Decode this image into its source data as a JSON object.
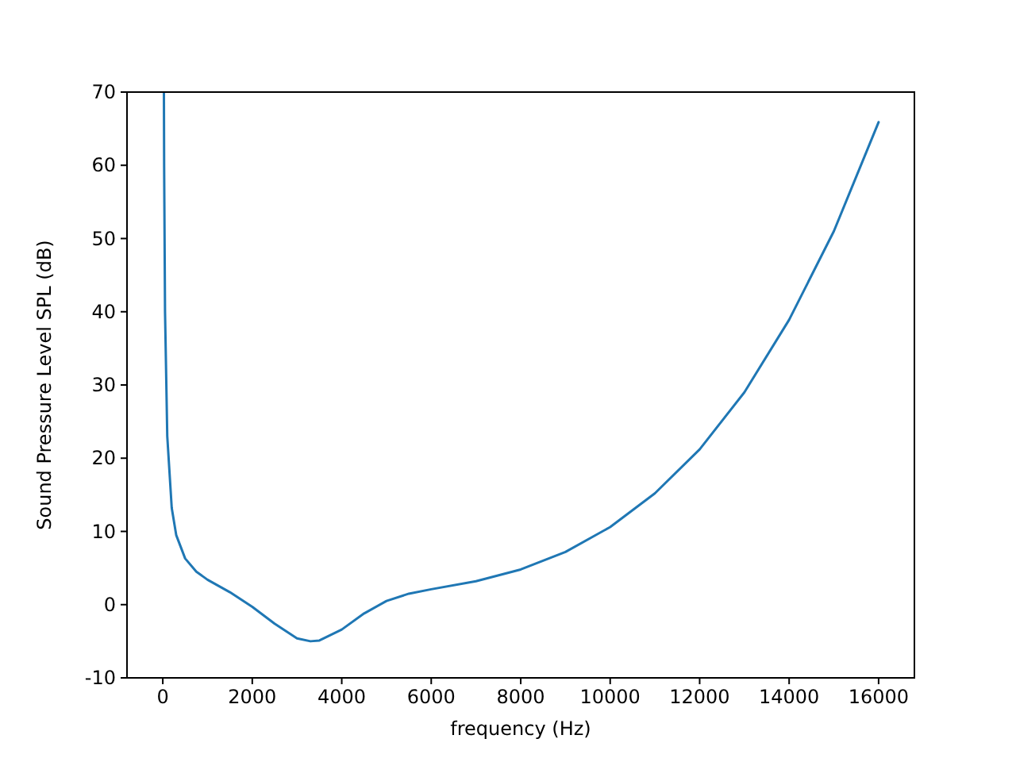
{
  "chart_data": {
    "type": "line",
    "xlabel": "frequency (Hz)",
    "ylabel": "Sound Pressure Level SPL (dB)",
    "x": [
      25,
      30,
      50,
      100,
      200,
      300,
      500,
      750,
      1000,
      1500,
      2000,
      2500,
      3000,
      3300,
      3500,
      4000,
      4500,
      5000,
      5500,
      6000,
      7000,
      8000,
      9000,
      10000,
      11000,
      12000,
      13000,
      14000,
      15000,
      16000
    ],
    "series": [
      {
        "color": "#1f77b4",
        "values": [
          70,
          60,
          40,
          23,
          13.2,
          9.5,
          6.3,
          4.5,
          3.4,
          1.7,
          -0.3,
          -2.6,
          -4.6,
          -5,
          -4.9,
          -3.4,
          -1.2,
          0.5,
          1.5,
          2.1,
          3.2,
          4.8,
          7.2,
          10.6,
          15.2,
          21.2,
          29,
          38.9,
          51,
          65.9
        ]
      }
    ],
    "xlim": [
      -800,
      16800
    ],
    "xticks": [
      0,
      2000,
      4000,
      6000,
      8000,
      10000,
      12000,
      14000,
      16000
    ],
    "ylim": [
      -10,
      70
    ],
    "yticks": [
      -10,
      0,
      10,
      20,
      30,
      40,
      50,
      60,
      70
    ],
    "grid": false,
    "marker": "none",
    "line_style": "solid"
  }
}
